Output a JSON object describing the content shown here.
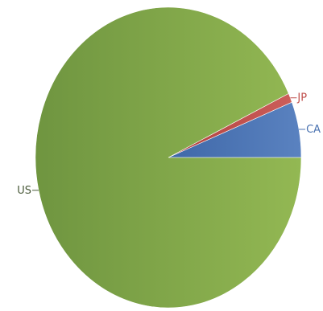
{
  "chart_data": {
    "type": "pie",
    "categories": [
      "CA",
      "JP",
      "US"
    ],
    "values": [
      6.0,
      1.0,
      93.0
    ],
    "colors": {
      "CA": "#4a72b0",
      "JP": "#c0504d",
      "US": "#8aae4f"
    },
    "legend": "none",
    "label_colors": {
      "CA": "#4a72b0",
      "JP": "#c0504d",
      "US": "#4a5a3a"
    }
  }
}
